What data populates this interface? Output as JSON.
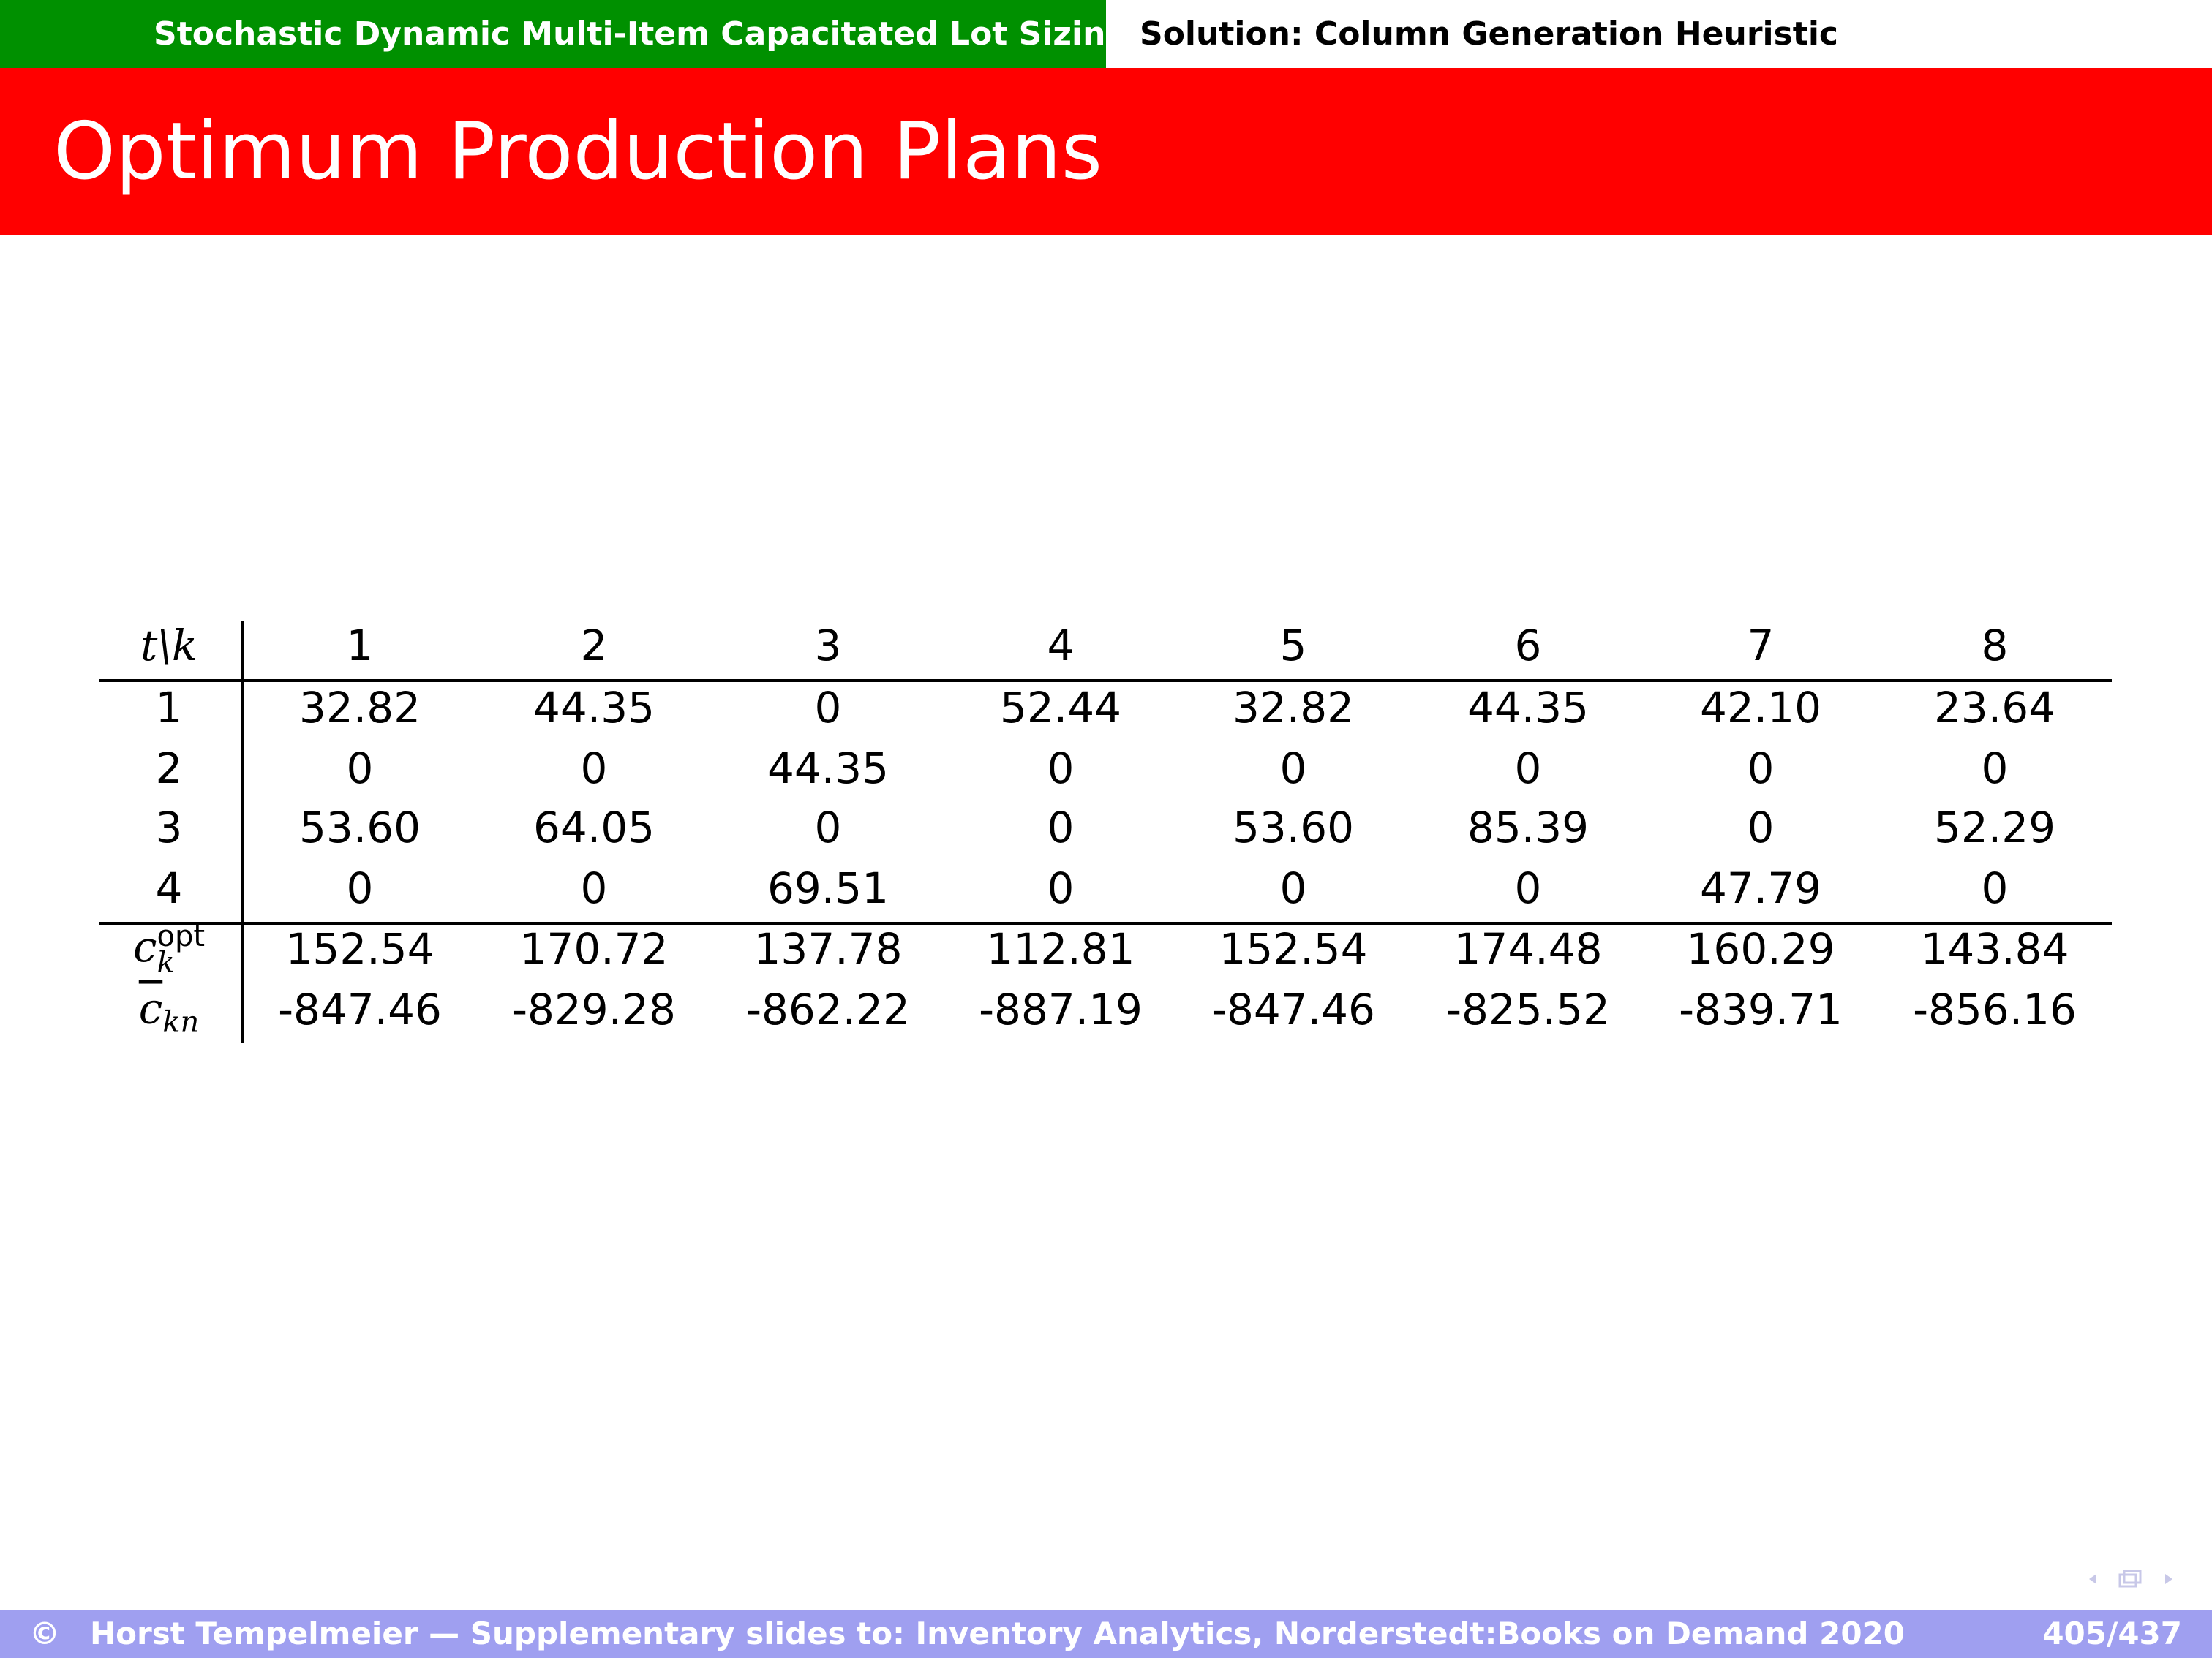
{
  "header": {
    "section": "Stochastic Dynamic Multi-Item Capacitated Lot Sizing",
    "subsection": "Solution: Column Generation Heuristic"
  },
  "title": "Optimum Production Plans",
  "table": {
    "corner": "t\\k",
    "columns": [
      "1",
      "2",
      "3",
      "4",
      "5",
      "6",
      "7",
      "8"
    ],
    "rows": [
      {
        "label": "1",
        "cells": [
          "32.82",
          "44.35",
          "0",
          "52.44",
          "32.82",
          "44.35",
          "42.10",
          "23.64"
        ]
      },
      {
        "label": "2",
        "cells": [
          "0",
          "0",
          "44.35",
          "0",
          "0",
          "0",
          "0",
          "0"
        ]
      },
      {
        "label": "3",
        "cells": [
          "53.60",
          "64.05",
          "0",
          "0",
          "53.60",
          "85.39",
          "0",
          "52.29"
        ]
      },
      {
        "label": "4",
        "cells": [
          "0",
          "0",
          "69.51",
          "0",
          "0",
          "0",
          "47.79",
          "0"
        ]
      }
    ],
    "cost_rows": [
      {
        "symbol": "c",
        "sub": "k",
        "sup": "opt",
        "overline": false,
        "cells": [
          "152.54",
          "170.72",
          "137.78",
          "112.81",
          "152.54",
          "174.48",
          "160.29",
          "143.84"
        ]
      },
      {
        "symbol": "c",
        "sub": "kn",
        "overline": true,
        "cells": [
          "-847.46",
          "-829.28",
          "-862.22",
          "-887.19",
          "-847.46",
          "-825.52",
          "-839.71",
          "-856.16"
        ]
      }
    ]
  },
  "footer": {
    "copyright": "©",
    "text": "Horst Tempelmeier — Supplementary slides to: Inventory Analytics, Norderstedt:Books on Demand 2020",
    "page": "405/437"
  }
}
